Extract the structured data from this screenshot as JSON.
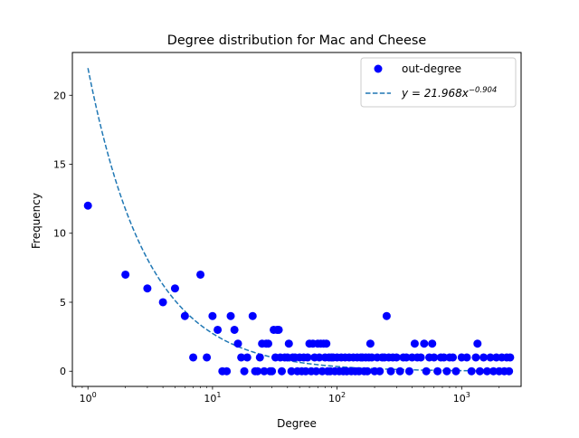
{
  "chart_data": {
    "type": "scatter",
    "title": "Degree distribution for Mac and Cheese",
    "xlabel": "Degree",
    "ylabel": "Frequency",
    "xscale": "log",
    "xlim": [
      0.75,
      3000
    ],
    "ylim": [
      -1.1,
      23.1
    ],
    "x_ticks": [
      {
        "value": 1,
        "base": "10",
        "exp": "0"
      },
      {
        "value": 10,
        "base": "10",
        "exp": "1"
      },
      {
        "value": 100,
        "base": "10",
        "exp": "2"
      },
      {
        "value": 1000,
        "base": "10",
        "exp": "3"
      }
    ],
    "y_ticks": [
      {
        "value": 0,
        "label": "0"
      },
      {
        "value": 5,
        "label": "5"
      },
      {
        "value": 10,
        "label": "10"
      },
      {
        "value": 15,
        "label": "15"
      },
      {
        "value": 20,
        "label": "20"
      }
    ],
    "grid": false,
    "legend_position": "top-right",
    "series": [
      {
        "name": "out-degree",
        "kind": "scatter",
        "color": "#0000ff",
        "points": [
          [
            1,
            12
          ],
          [
            2,
            7
          ],
          [
            3,
            6
          ],
          [
            4,
            5
          ],
          [
            5,
            6
          ],
          [
            6,
            4
          ],
          [
            7,
            1
          ],
          [
            8,
            7
          ],
          [
            9,
            1
          ],
          [
            10,
            4
          ],
          [
            11,
            3
          ],
          [
            12,
            0
          ],
          [
            13,
            0
          ],
          [
            14,
            4
          ],
          [
            15,
            3
          ],
          [
            16,
            2
          ],
          [
            17,
            1
          ],
          [
            18,
            0
          ],
          [
            19,
            1
          ],
          [
            21,
            4
          ],
          [
            22,
            0
          ],
          [
            23,
            0
          ],
          [
            24,
            1
          ],
          [
            25,
            2
          ],
          [
            26,
            0
          ],
          [
            27,
            2
          ],
          [
            28,
            2
          ],
          [
            29,
            0
          ],
          [
            30,
            0
          ],
          [
            31,
            3
          ],
          [
            32,
            1
          ],
          [
            33,
            3
          ],
          [
            34,
            3
          ],
          [
            35,
            1
          ],
          [
            36,
            0
          ],
          [
            38,
            1
          ],
          [
            40,
            1
          ],
          [
            41,
            2
          ],
          [
            43,
            0
          ],
          [
            44,
            1
          ],
          [
            46,
            1
          ],
          [
            48,
            0
          ],
          [
            50,
            1
          ],
          [
            52,
            0
          ],
          [
            54,
            1
          ],
          [
            56,
            0
          ],
          [
            58,
            1
          ],
          [
            60,
            2
          ],
          [
            62,
            0
          ],
          [
            64,
            2
          ],
          [
            66,
            1
          ],
          [
            68,
            0
          ],
          [
            70,
            2
          ],
          [
            72,
            1
          ],
          [
            74,
            2
          ],
          [
            76,
            0
          ],
          [
            78,
            2
          ],
          [
            80,
            1
          ],
          [
            82,
            2
          ],
          [
            84,
            0
          ],
          [
            86,
            1
          ],
          [
            88,
            0
          ],
          [
            90,
            1
          ],
          [
            93,
            1
          ],
          [
            96,
            0
          ],
          [
            100,
            1
          ],
          [
            104,
            0
          ],
          [
            108,
            1
          ],
          [
            112,
            0
          ],
          [
            116,
            1
          ],
          [
            120,
            0
          ],
          [
            125,
            1
          ],
          [
            130,
            0
          ],
          [
            135,
            1
          ],
          [
            140,
            0
          ],
          [
            145,
            1
          ],
          [
            150,
            0
          ],
          [
            155,
            1
          ],
          [
            160,
            1
          ],
          [
            165,
            0
          ],
          [
            170,
            1
          ],
          [
            175,
            0
          ],
          [
            180,
            1
          ],
          [
            185,
            2
          ],
          [
            190,
            1
          ],
          [
            200,
            0
          ],
          [
            210,
            1
          ],
          [
            220,
            0
          ],
          [
            230,
            1
          ],
          [
            240,
            1
          ],
          [
            250,
            4
          ],
          [
            260,
            1
          ],
          [
            270,
            0
          ],
          [
            280,
            1
          ],
          [
            300,
            1
          ],
          [
            320,
            0
          ],
          [
            340,
            1
          ],
          [
            360,
            1
          ],
          [
            380,
            0
          ],
          [
            400,
            1
          ],
          [
            420,
            2
          ],
          [
            440,
            1
          ],
          [
            470,
            1
          ],
          [
            500,
            2
          ],
          [
            520,
            0
          ],
          [
            550,
            1
          ],
          [
            580,
            2
          ],
          [
            600,
            1
          ],
          [
            640,
            0
          ],
          [
            680,
            1
          ],
          [
            720,
            1
          ],
          [
            760,
            0
          ],
          [
            800,
            1
          ],
          [
            850,
            1
          ],
          [
            900,
            0
          ],
          [
            1000,
            1
          ],
          [
            1100,
            1
          ],
          [
            1200,
            0
          ],
          [
            1300,
            1
          ],
          [
            1340,
            2
          ],
          [
            1400,
            0
          ],
          [
            1500,
            1
          ],
          [
            1600,
            0
          ],
          [
            1700,
            1
          ],
          [
            1800,
            0
          ],
          [
            1900,
            1
          ],
          [
            2000,
            0
          ],
          [
            2100,
            1
          ],
          [
            2200,
            0
          ],
          [
            2300,
            1
          ],
          [
            2400,
            0
          ],
          [
            2450,
            1
          ]
        ]
      },
      {
        "name": "y = 21.968x^-0.904",
        "kind": "line",
        "color": "#1f77b4",
        "linestyle": "dashed",
        "coefficient": 21.968,
        "exponent": -0.904,
        "x_range": [
          1,
          2450
        ]
      }
    ],
    "legend": [
      {
        "label": "out-degree",
        "marker": "circle",
        "color": "#0000ff"
      },
      {
        "label_prefix": "y = 21.968x",
        "label_exp": "−0.904",
        "marker": "dashed-line",
        "color": "#1f77b4"
      }
    ]
  }
}
